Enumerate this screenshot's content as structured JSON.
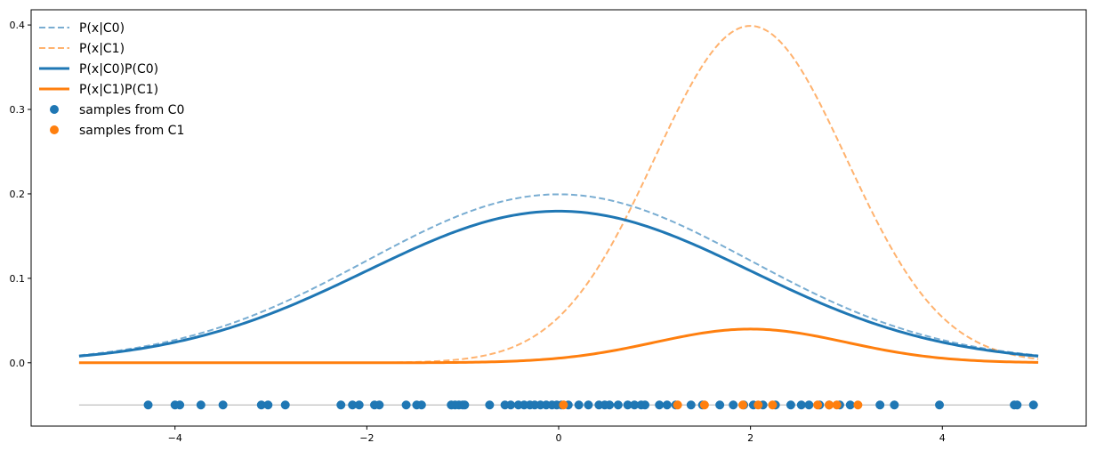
{
  "chart_data": {
    "type": "line",
    "title": "",
    "xlabel": "",
    "ylabel": "",
    "xlim": [
      -5.5,
      5.5
    ],
    "ylim": [
      -0.075,
      0.418
    ],
    "xticks": [
      -4,
      -2,
      0,
      2,
      4
    ],
    "yticks": [
      0.0,
      0.1,
      0.2,
      0.3,
      0.4
    ],
    "xtick_labels": [
      "−4",
      "−2",
      "0",
      "2",
      "4"
    ],
    "ytick_labels": [
      "0.0",
      "0.1",
      "0.2",
      "0.3",
      "0.4"
    ],
    "grid": false,
    "legend_position": "top-left",
    "colors": {
      "c0": "#1f77b4",
      "c1": "#ff7f0e",
      "baseline": "#bfbfbf"
    },
    "series": [
      {
        "name": "P(x|C0)",
        "style": "dashed",
        "color": "#1f77b4",
        "x_range": [
          -5,
          5
        ],
        "mean": 0,
        "std": 2,
        "weight": 1.0,
        "peak": 0.199
      },
      {
        "name": "P(x|C1)",
        "style": "dashed",
        "color": "#ff7f0e",
        "x_range": [
          -5,
          5
        ],
        "mean": 2,
        "std": 1,
        "weight": 1.0,
        "peak": 0.399
      },
      {
        "name": "P(x|C0)P(C0)",
        "style": "solid",
        "color": "#1f77b4",
        "x_range": [
          -5,
          5
        ],
        "mean": 0,
        "std": 2,
        "weight": 0.9,
        "peak": 0.179
      },
      {
        "name": "P(x|C1)P(C1)",
        "style": "solid",
        "color": "#ff7f0e",
        "x_range": [
          -5,
          5
        ],
        "mean": 2,
        "std": 1,
        "weight": 0.1,
        "peak": 0.04
      }
    ],
    "samples": [
      {
        "name": "samples from C0",
        "color": "#1f77b4",
        "y": -0.05,
        "x": [
          -4.28,
          -4.0,
          -3.95,
          -3.73,
          -3.5,
          -3.1,
          -3.03,
          -2.85,
          -2.27,
          -2.15,
          -2.08,
          -1.92,
          -1.87,
          -1.59,
          -1.48,
          -1.43,
          -1.12,
          -1.08,
          -1.04,
          -1.0,
          -0.98,
          -0.72,
          -0.56,
          -0.5,
          -0.42,
          -0.36,
          -0.3,
          -0.25,
          -0.19,
          -0.13,
          -0.07,
          -0.02,
          0.03,
          0.1,
          0.21,
          0.31,
          0.42,
          0.48,
          0.53,
          0.62,
          0.72,
          0.79,
          0.86,
          0.9,
          1.05,
          1.13,
          1.22,
          1.38,
          1.5,
          1.68,
          1.82,
          1.93,
          2.03,
          2.13,
          2.26,
          2.42,
          2.53,
          2.61,
          2.72,
          2.82,
          2.93,
          3.04,
          3.35,
          3.5,
          3.97,
          4.75,
          4.78,
          4.95
        ]
      },
      {
        "name": "samples from C1",
        "color": "#ff7f0e",
        "y": -0.05,
        "x": [
          0.05,
          1.24,
          1.52,
          1.92,
          2.08,
          2.23,
          2.7,
          2.82,
          2.9,
          3.12
        ]
      }
    ]
  }
}
